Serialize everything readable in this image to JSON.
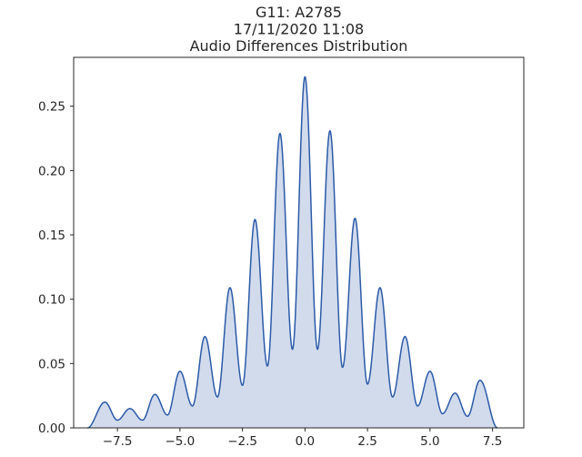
{
  "chart_data": {
    "type": "area",
    "title_lines": [
      "G11: A2785",
      "17/11/2020 11:08",
      "Audio Differences Distribution"
    ],
    "xlabel": "",
    "ylabel": "",
    "xlim": [
      -9.25,
      8.75
    ],
    "ylim": [
      0,
      0.288
    ],
    "x_ticks": [
      -7.5,
      -5.0,
      -2.5,
      0.0,
      2.5,
      5.0,
      7.5
    ],
    "x_tick_labels": [
      "−7.5",
      "−5.0",
      "−2.5",
      "0.0",
      "2.5",
      "5.0",
      "7.5"
    ],
    "y_ticks": [
      0.0,
      0.05,
      0.1,
      0.15,
      0.2,
      0.25
    ],
    "y_tick_labels": [
      "0.00",
      "0.05",
      "0.10",
      "0.15",
      "0.20",
      "0.25"
    ],
    "grid": false,
    "line_color": "#2b5aa8",
    "fill_color": "#d2dbec",
    "series": [
      {
        "peaks": [
          {
            "x": -8.0,
            "y": 0.02
          },
          {
            "x": -7.0,
            "y": 0.015
          },
          {
            "x": -6.0,
            "y": 0.026
          },
          {
            "x": -5.0,
            "y": 0.044
          },
          {
            "x": -4.0,
            "y": 0.071
          },
          {
            "x": -3.0,
            "y": 0.109
          },
          {
            "x": -2.0,
            "y": 0.162
          },
          {
            "x": -1.0,
            "y": 0.229
          },
          {
            "x": 0.0,
            "y": 0.273
          },
          {
            "x": 1.0,
            "y": 0.231
          },
          {
            "x": 2.0,
            "y": 0.163
          },
          {
            "x": 3.0,
            "y": 0.109
          },
          {
            "x": 4.0,
            "y": 0.071
          },
          {
            "x": 5.0,
            "y": 0.044
          },
          {
            "x": 6.0,
            "y": 0.027
          },
          {
            "x": 7.0,
            "y": 0.037
          }
        ],
        "troughs": [
          {
            "x": -7.5,
            "y": 0.006
          },
          {
            "x": -6.5,
            "y": 0.006
          },
          {
            "x": -5.5,
            "y": 0.01
          },
          {
            "x": -4.5,
            "y": 0.017
          },
          {
            "x": -3.5,
            "y": 0.024
          },
          {
            "x": -2.5,
            "y": 0.033
          },
          {
            "x": -1.5,
            "y": 0.048
          },
          {
            "x": -0.5,
            "y": 0.061
          },
          {
            "x": 0.5,
            "y": 0.061
          },
          {
            "x": 1.5,
            "y": 0.047
          },
          {
            "x": 2.5,
            "y": 0.034
          },
          {
            "x": 3.5,
            "y": 0.024
          },
          {
            "x": 4.5,
            "y": 0.017
          },
          {
            "x": 5.5,
            "y": 0.011
          },
          {
            "x": 6.5,
            "y": 0.009
          }
        ],
        "support": [
          -8.7,
          7.7
        ]
      }
    ]
  }
}
